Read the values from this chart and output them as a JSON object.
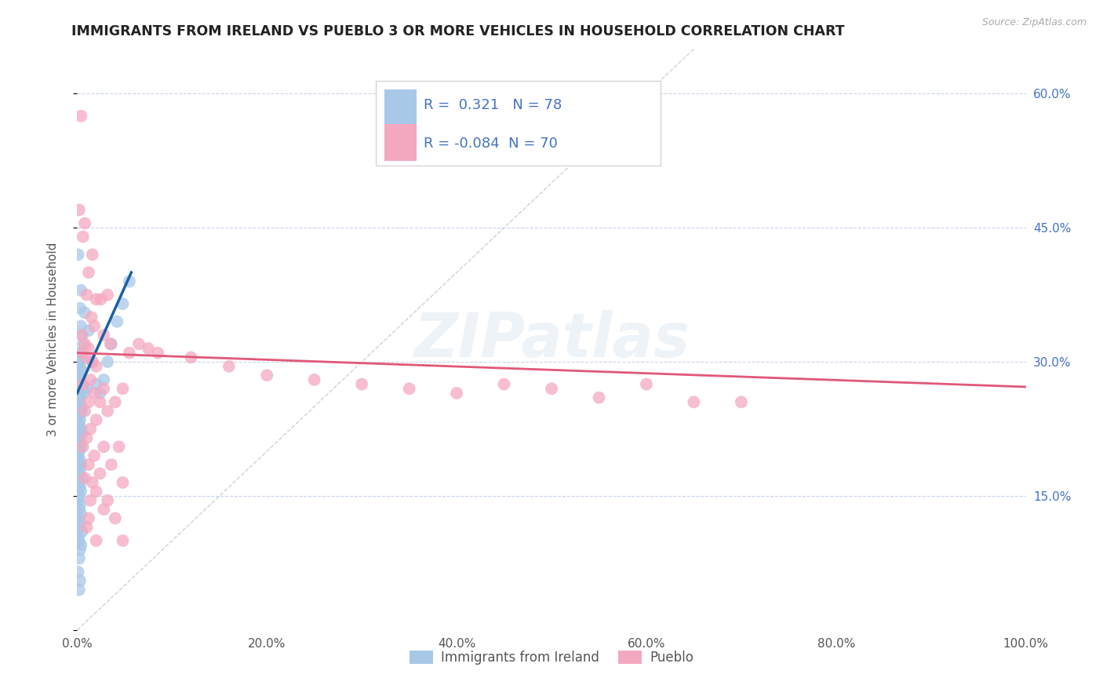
{
  "title": "IMMIGRANTS FROM IRELAND VS PUEBLO 3 OR MORE VEHICLES IN HOUSEHOLD CORRELATION CHART",
  "source_text": "Source: ZipAtlas.com",
  "ylabel": "3 or more Vehicles in Household",
  "legend_labels": [
    "Immigrants from Ireland",
    "Pueblo"
  ],
  "r_blue": 0.321,
  "n_blue": 78,
  "r_pink": -0.084,
  "n_pink": 70,
  "xlim": [
    0.0,
    1.0
  ],
  "ylim": [
    0.0,
    0.65
  ],
  "xticks": [
    0.0,
    0.2,
    0.4,
    0.6,
    0.8,
    1.0
  ],
  "xtick_labels": [
    "0.0%",
    "20.0%",
    "40.0%",
    "60.0%",
    "80.0%",
    "100.0%"
  ],
  "yticks": [
    0.0,
    0.15,
    0.3,
    0.45,
    0.6
  ],
  "ytick_labels_right": [
    "",
    "15.0%",
    "30.0%",
    "45.0%",
    "60.0%"
  ],
  "watermark": "ZIPatlas",
  "blue_color": "#a8c8e8",
  "pink_color": "#f4a8c0",
  "blue_line_color": "#1a5fa8",
  "pink_line_color": "#e05878",
  "diagonal_color": "#b8c8d8",
  "blue_scatter": [
    [
      0.001,
      0.42
    ],
    [
      0.004,
      0.38
    ],
    [
      0.003,
      0.36
    ],
    [
      0.004,
      0.34
    ],
    [
      0.005,
      0.33
    ],
    [
      0.006,
      0.32
    ],
    [
      0.003,
      0.31
    ],
    [
      0.002,
      0.3
    ],
    [
      0.004,
      0.305
    ],
    [
      0.003,
      0.295
    ],
    [
      0.002,
      0.29
    ],
    [
      0.005,
      0.29
    ],
    [
      0.001,
      0.285
    ],
    [
      0.003,
      0.28
    ],
    [
      0.002,
      0.275
    ],
    [
      0.004,
      0.27
    ],
    [
      0.006,
      0.27
    ],
    [
      0.001,
      0.265
    ],
    [
      0.002,
      0.265
    ],
    [
      0.003,
      0.26
    ],
    [
      0.001,
      0.255
    ],
    [
      0.002,
      0.255
    ],
    [
      0.004,
      0.25
    ],
    [
      0.003,
      0.245
    ],
    [
      0.005,
      0.245
    ],
    [
      0.002,
      0.24
    ],
    [
      0.001,
      0.24
    ],
    [
      0.003,
      0.235
    ],
    [
      0.002,
      0.23
    ],
    [
      0.004,
      0.225
    ],
    [
      0.001,
      0.225
    ],
    [
      0.003,
      0.22
    ],
    [
      0.005,
      0.22
    ],
    [
      0.001,
      0.215
    ],
    [
      0.002,
      0.21
    ],
    [
      0.003,
      0.21
    ],
    [
      0.004,
      0.205
    ],
    [
      0.002,
      0.2
    ],
    [
      0.001,
      0.195
    ],
    [
      0.003,
      0.19
    ],
    [
      0.004,
      0.185
    ],
    [
      0.001,
      0.185
    ],
    [
      0.003,
      0.18
    ],
    [
      0.002,
      0.175
    ],
    [
      0.005,
      0.17
    ],
    [
      0.001,
      0.17
    ],
    [
      0.002,
      0.165
    ],
    [
      0.003,
      0.16
    ],
    [
      0.004,
      0.155
    ],
    [
      0.002,
      0.15
    ],
    [
      0.001,
      0.145
    ],
    [
      0.003,
      0.14
    ],
    [
      0.002,
      0.135
    ],
    [
      0.004,
      0.13
    ],
    [
      0.001,
      0.125
    ],
    [
      0.003,
      0.12
    ],
    [
      0.002,
      0.115
    ],
    [
      0.005,
      0.11
    ],
    [
      0.001,
      0.105
    ],
    [
      0.002,
      0.1
    ],
    [
      0.004,
      0.095
    ],
    [
      0.003,
      0.09
    ],
    [
      0.002,
      0.08
    ],
    [
      0.001,
      0.065
    ],
    [
      0.003,
      0.055
    ],
    [
      0.002,
      0.045
    ],
    [
      0.008,
      0.355
    ],
    [
      0.012,
      0.335
    ],
    [
      0.016,
      0.3
    ],
    [
      0.02,
      0.275
    ],
    [
      0.024,
      0.265
    ],
    [
      0.028,
      0.28
    ],
    [
      0.032,
      0.3
    ],
    [
      0.036,
      0.32
    ],
    [
      0.042,
      0.345
    ],
    [
      0.048,
      0.365
    ],
    [
      0.055,
      0.39
    ],
    [
      0.007,
      0.265
    ],
    [
      0.01,
      0.27
    ]
  ],
  "pink_scatter": [
    [
      0.004,
      0.575
    ],
    [
      0.002,
      0.47
    ],
    [
      0.008,
      0.455
    ],
    [
      0.006,
      0.44
    ],
    [
      0.016,
      0.42
    ],
    [
      0.012,
      0.4
    ],
    [
      0.01,
      0.375
    ],
    [
      0.02,
      0.37
    ],
    [
      0.025,
      0.37
    ],
    [
      0.032,
      0.375
    ],
    [
      0.015,
      0.35
    ],
    [
      0.018,
      0.34
    ],
    [
      0.028,
      0.33
    ],
    [
      0.005,
      0.33
    ],
    [
      0.008,
      0.32
    ],
    [
      0.012,
      0.315
    ],
    [
      0.035,
      0.32
    ],
    [
      0.006,
      0.31
    ],
    [
      0.01,
      0.305
    ],
    [
      0.016,
      0.3
    ],
    [
      0.02,
      0.295
    ],
    [
      0.014,
      0.28
    ],
    [
      0.006,
      0.275
    ],
    [
      0.028,
      0.27
    ],
    [
      0.048,
      0.27
    ],
    [
      0.018,
      0.265
    ],
    [
      0.012,
      0.255
    ],
    [
      0.024,
      0.255
    ],
    [
      0.04,
      0.255
    ],
    [
      0.008,
      0.245
    ],
    [
      0.032,
      0.245
    ],
    [
      0.02,
      0.235
    ],
    [
      0.014,
      0.225
    ],
    [
      0.01,
      0.215
    ],
    [
      0.006,
      0.205
    ],
    [
      0.028,
      0.205
    ],
    [
      0.044,
      0.205
    ],
    [
      0.018,
      0.195
    ],
    [
      0.012,
      0.185
    ],
    [
      0.036,
      0.185
    ],
    [
      0.024,
      0.175
    ],
    [
      0.008,
      0.17
    ],
    [
      0.016,
      0.165
    ],
    [
      0.048,
      0.165
    ],
    [
      0.02,
      0.155
    ],
    [
      0.014,
      0.145
    ],
    [
      0.032,
      0.145
    ],
    [
      0.028,
      0.135
    ],
    [
      0.012,
      0.125
    ],
    [
      0.04,
      0.125
    ],
    [
      0.01,
      0.115
    ],
    [
      0.02,
      0.1
    ],
    [
      0.048,
      0.1
    ],
    [
      0.055,
      0.31
    ],
    [
      0.065,
      0.32
    ],
    [
      0.075,
      0.315
    ],
    [
      0.085,
      0.31
    ],
    [
      0.12,
      0.305
    ],
    [
      0.16,
      0.295
    ],
    [
      0.2,
      0.285
    ],
    [
      0.25,
      0.28
    ],
    [
      0.3,
      0.275
    ],
    [
      0.35,
      0.27
    ],
    [
      0.4,
      0.265
    ],
    [
      0.45,
      0.275
    ],
    [
      0.5,
      0.27
    ],
    [
      0.55,
      0.26
    ],
    [
      0.6,
      0.275
    ],
    [
      0.65,
      0.255
    ],
    [
      0.7,
      0.255
    ]
  ],
  "blue_trend_x": [
    0.0,
    0.057
  ],
  "blue_trend_y": [
    0.265,
    0.4
  ],
  "pink_trend_x": [
    0.0,
    1.0
  ],
  "pink_trend_y": [
    0.31,
    0.272
  ]
}
